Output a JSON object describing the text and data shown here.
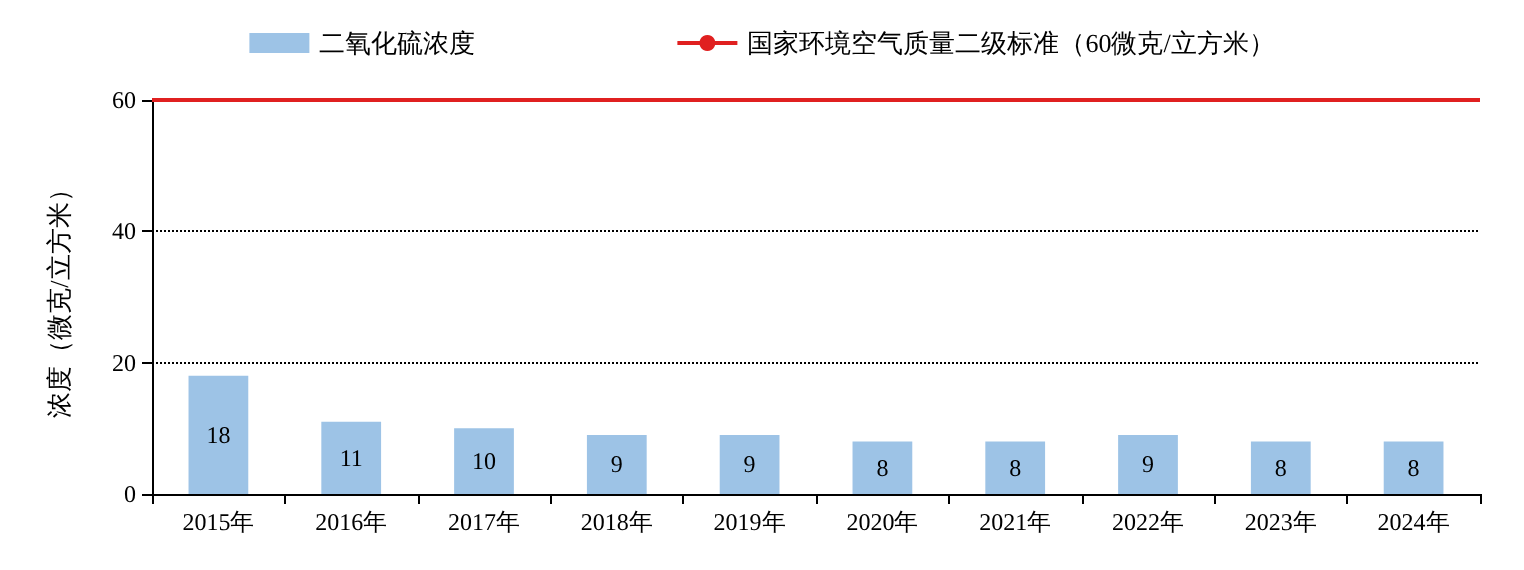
{
  "chart_data": {
    "type": "bar",
    "ylabel": "浓度（微克/立方米）",
    "categories": [
      "2015年",
      "2016年",
      "2017年",
      "2018年",
      "2019年",
      "2020年",
      "2021年",
      "2022年",
      "2023年",
      "2024年"
    ],
    "series": [
      {
        "name": "二氧化硫浓度",
        "color": "#9dc3e6",
        "values": [
          18,
          11,
          10,
          9,
          9,
          8,
          8,
          9,
          8,
          8
        ]
      }
    ],
    "ylim": [
      0,
      60
    ],
    "yticks": [
      0,
      20,
      40,
      60
    ],
    "grid": "y",
    "legend": "top",
    "data_labels": true,
    "ref_lines": [
      {
        "axis": "y",
        "value": 60,
        "label": "国家环境空气质量二级标准（60微克/立方米）",
        "color": "#e02020",
        "line_style": "solid"
      }
    ]
  }
}
